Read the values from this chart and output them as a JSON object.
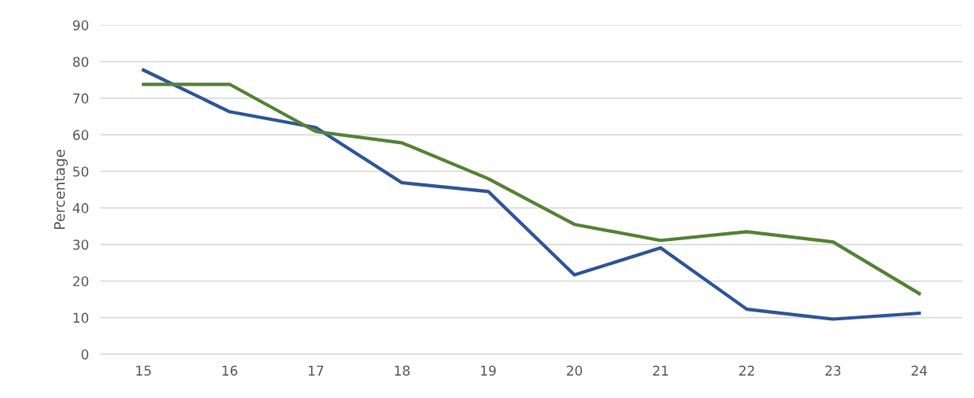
{
  "chart_data": {
    "type": "line",
    "ylabel": "Percentage",
    "categories": [
      "15",
      "16",
      "17",
      "18",
      "19",
      "20",
      "21",
      "22",
      "23",
      "24"
    ],
    "series": [
      {
        "color": "#2f5597",
        "values": [
          77.7,
          66.3,
          62,
          46.9,
          44.5,
          21.7,
          29.1,
          12.3,
          9.6,
          11.2
        ]
      },
      {
        "color": "#548235",
        "values": [
          73.8,
          73.8,
          60.9,
          57.8,
          48,
          35.5,
          31.1,
          33.5,
          30.7,
          16.6
        ]
      }
    ],
    "ylim": [
      0,
      90
    ],
    "yticks": [
      0,
      10,
      20,
      30,
      40,
      50,
      60,
      70,
      80,
      90
    ],
    "grid": "y",
    "marker": "none",
    "line_style": "solid"
  }
}
